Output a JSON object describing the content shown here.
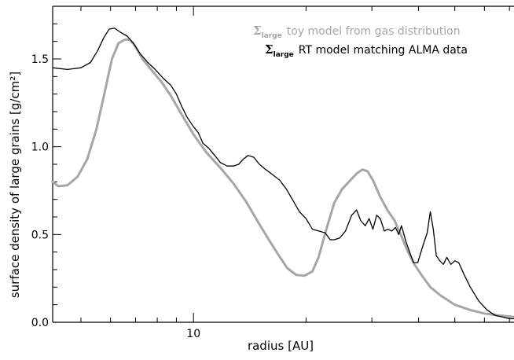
{
  "chart_data": {
    "type": "line",
    "xlabel": "radius [AU]",
    "ylabel": "surface density of large grains [g/cm²]",
    "xscale": "log",
    "xlim": [
      4.2,
      72
    ],
    "ylim": [
      0.0,
      1.8
    ],
    "x_tick_labels": [
      {
        "value": 10,
        "label": "10"
      }
    ],
    "y_tick_labels": [
      {
        "value": 0.0,
        "label": "0.0"
      },
      {
        "value": 0.5,
        "label": "0.5"
      },
      {
        "value": 1.0,
        "label": "1.0"
      },
      {
        "value": 1.5,
        "label": "1.5"
      }
    ],
    "grid": false,
    "legend_position": "top-right",
    "series": [
      {
        "name": "toy model from gas distribution",
        "legend_symbol": "Σ",
        "legend_subscript": "large",
        "color": "#a6a6a6",
        "width": 3,
        "points": [
          [
            4.2,
            0.8
          ],
          [
            4.35,
            0.775
          ],
          [
            4.6,
            0.78
          ],
          [
            4.9,
            0.83
          ],
          [
            5.2,
            0.93
          ],
          [
            5.5,
            1.1
          ],
          [
            5.8,
            1.32
          ],
          [
            6.05,
            1.5
          ],
          [
            6.3,
            1.59
          ],
          [
            6.55,
            1.61
          ],
          [
            6.75,
            1.61
          ],
          [
            6.95,
            1.58
          ],
          [
            7.3,
            1.5
          ],
          [
            7.7,
            1.44
          ],
          [
            8.2,
            1.37
          ],
          [
            8.7,
            1.29
          ],
          [
            9.2,
            1.2
          ],
          [
            10.0,
            1.07
          ],
          [
            10.8,
            0.97
          ],
          [
            11.8,
            0.88
          ],
          [
            12.8,
            0.79
          ],
          [
            13.8,
            0.69
          ],
          [
            14.8,
            0.58
          ],
          [
            15.8,
            0.48
          ],
          [
            16.8,
            0.39
          ],
          [
            17.8,
            0.31
          ],
          [
            18.8,
            0.27
          ],
          [
            19.8,
            0.265
          ],
          [
            20.8,
            0.29
          ],
          [
            21.6,
            0.37
          ],
          [
            22.6,
            0.52
          ],
          [
            23.8,
            0.68
          ],
          [
            25.0,
            0.76
          ],
          [
            26.3,
            0.81
          ],
          [
            27.4,
            0.85
          ],
          [
            28.3,
            0.87
          ],
          [
            29.2,
            0.86
          ],
          [
            30.2,
            0.81
          ],
          [
            31.5,
            0.72
          ],
          [
            33.0,
            0.64
          ],
          [
            34.5,
            0.58
          ],
          [
            36.0,
            0.49
          ],
          [
            37.5,
            0.4
          ],
          [
            39.0,
            0.33
          ],
          [
            41.0,
            0.26
          ],
          [
            43.0,
            0.2
          ],
          [
            46.0,
            0.15
          ],
          [
            50.0,
            0.1
          ],
          [
            55.0,
            0.07
          ],
          [
            60.0,
            0.05
          ],
          [
            65.0,
            0.04
          ],
          [
            72.0,
            0.03
          ]
        ]
      },
      {
        "name": "RT model matching ALMA data",
        "legend_symbol": "Σ",
        "legend_subscript": "large",
        "color": "#000000",
        "width": 1.3,
        "points": [
          [
            4.2,
            1.45
          ],
          [
            4.6,
            1.44
          ],
          [
            5.0,
            1.45
          ],
          [
            5.3,
            1.48
          ],
          [
            5.55,
            1.55
          ],
          [
            5.75,
            1.62
          ],
          [
            5.95,
            1.67
          ],
          [
            6.15,
            1.675
          ],
          [
            6.4,
            1.65
          ],
          [
            6.65,
            1.63
          ],
          [
            6.9,
            1.59
          ],
          [
            7.2,
            1.53
          ],
          [
            7.55,
            1.48
          ],
          [
            7.9,
            1.44
          ],
          [
            8.3,
            1.39
          ],
          [
            8.7,
            1.35
          ],
          [
            9.0,
            1.3
          ],
          [
            9.3,
            1.23
          ],
          [
            9.6,
            1.17
          ],
          [
            9.95,
            1.12
          ],
          [
            10.3,
            1.08
          ],
          [
            10.6,
            1.02
          ],
          [
            11.0,
            0.99
          ],
          [
            11.4,
            0.95
          ],
          [
            11.8,
            0.91
          ],
          [
            12.3,
            0.89
          ],
          [
            12.8,
            0.89
          ],
          [
            13.2,
            0.9
          ],
          [
            13.6,
            0.93
          ],
          [
            14.0,
            0.95
          ],
          [
            14.5,
            0.94
          ],
          [
            15.0,
            0.9
          ],
          [
            15.6,
            0.87
          ],
          [
            16.3,
            0.84
          ],
          [
            17.0,
            0.81
          ],
          [
            17.7,
            0.76
          ],
          [
            18.5,
            0.69
          ],
          [
            19.2,
            0.63
          ],
          [
            20.0,
            0.59
          ],
          [
            20.8,
            0.53
          ],
          [
            21.6,
            0.52
          ],
          [
            22.5,
            0.51
          ],
          [
            23.2,
            0.47
          ],
          [
            23.8,
            0.47
          ],
          [
            24.6,
            0.48
          ],
          [
            25.5,
            0.52
          ],
          [
            26.5,
            0.61
          ],
          [
            27.3,
            0.64
          ],
          [
            28.0,
            0.58
          ],
          [
            28.8,
            0.55
          ],
          [
            29.5,
            0.59
          ],
          [
            30.2,
            0.53
          ],
          [
            30.9,
            0.61
          ],
          [
            31.6,
            0.59
          ],
          [
            32.4,
            0.52
          ],
          [
            33.1,
            0.53
          ],
          [
            33.9,
            0.52
          ],
          [
            34.7,
            0.54
          ],
          [
            35.4,
            0.5
          ],
          [
            36.0,
            0.55
          ],
          [
            37.0,
            0.46
          ],
          [
            38.0,
            0.39
          ],
          [
            38.8,
            0.34
          ],
          [
            39.8,
            0.34
          ],
          [
            41.0,
            0.43
          ],
          [
            42.2,
            0.51
          ],
          [
            43.0,
            0.63
          ],
          [
            43.8,
            0.53
          ],
          [
            44.6,
            0.38
          ],
          [
            45.6,
            0.35
          ],
          [
            46.6,
            0.33
          ],
          [
            47.6,
            0.37
          ],
          [
            48.8,
            0.33
          ],
          [
            50.0,
            0.35
          ],
          [
            51.2,
            0.34
          ],
          [
            53.0,
            0.27
          ],
          [
            55.0,
            0.2
          ],
          [
            58.0,
            0.12
          ],
          [
            61.0,
            0.07
          ],
          [
            64.0,
            0.04
          ],
          [
            67.0,
            0.03
          ],
          [
            70.0,
            0.02
          ],
          [
            72.0,
            0.02
          ]
        ]
      }
    ]
  }
}
